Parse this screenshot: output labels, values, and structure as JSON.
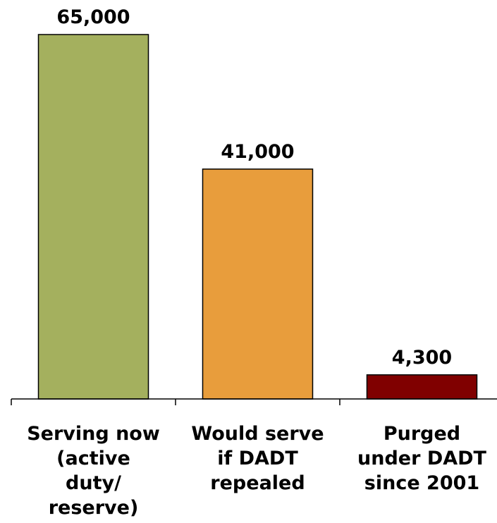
{
  "chart_data": {
    "type": "bar",
    "title": "",
    "xlabel": "",
    "ylabel": "",
    "ylim": [
      0,
      65000
    ],
    "grid": false,
    "categories": [
      [
        "Serving now",
        "(active",
        "duty/",
        "reserve)"
      ],
      [
        "Would serve",
        "if DADT",
        "repealed"
      ],
      [
        "Purged",
        "under DADT",
        "since 2001"
      ]
    ],
    "values": [
      65000,
      41000,
      4300
    ],
    "value_labels": [
      "65,000",
      "41,000",
      "4,300"
    ],
    "colors": [
      "#a4b05e",
      "#e89d3c",
      "#800000"
    ]
  }
}
